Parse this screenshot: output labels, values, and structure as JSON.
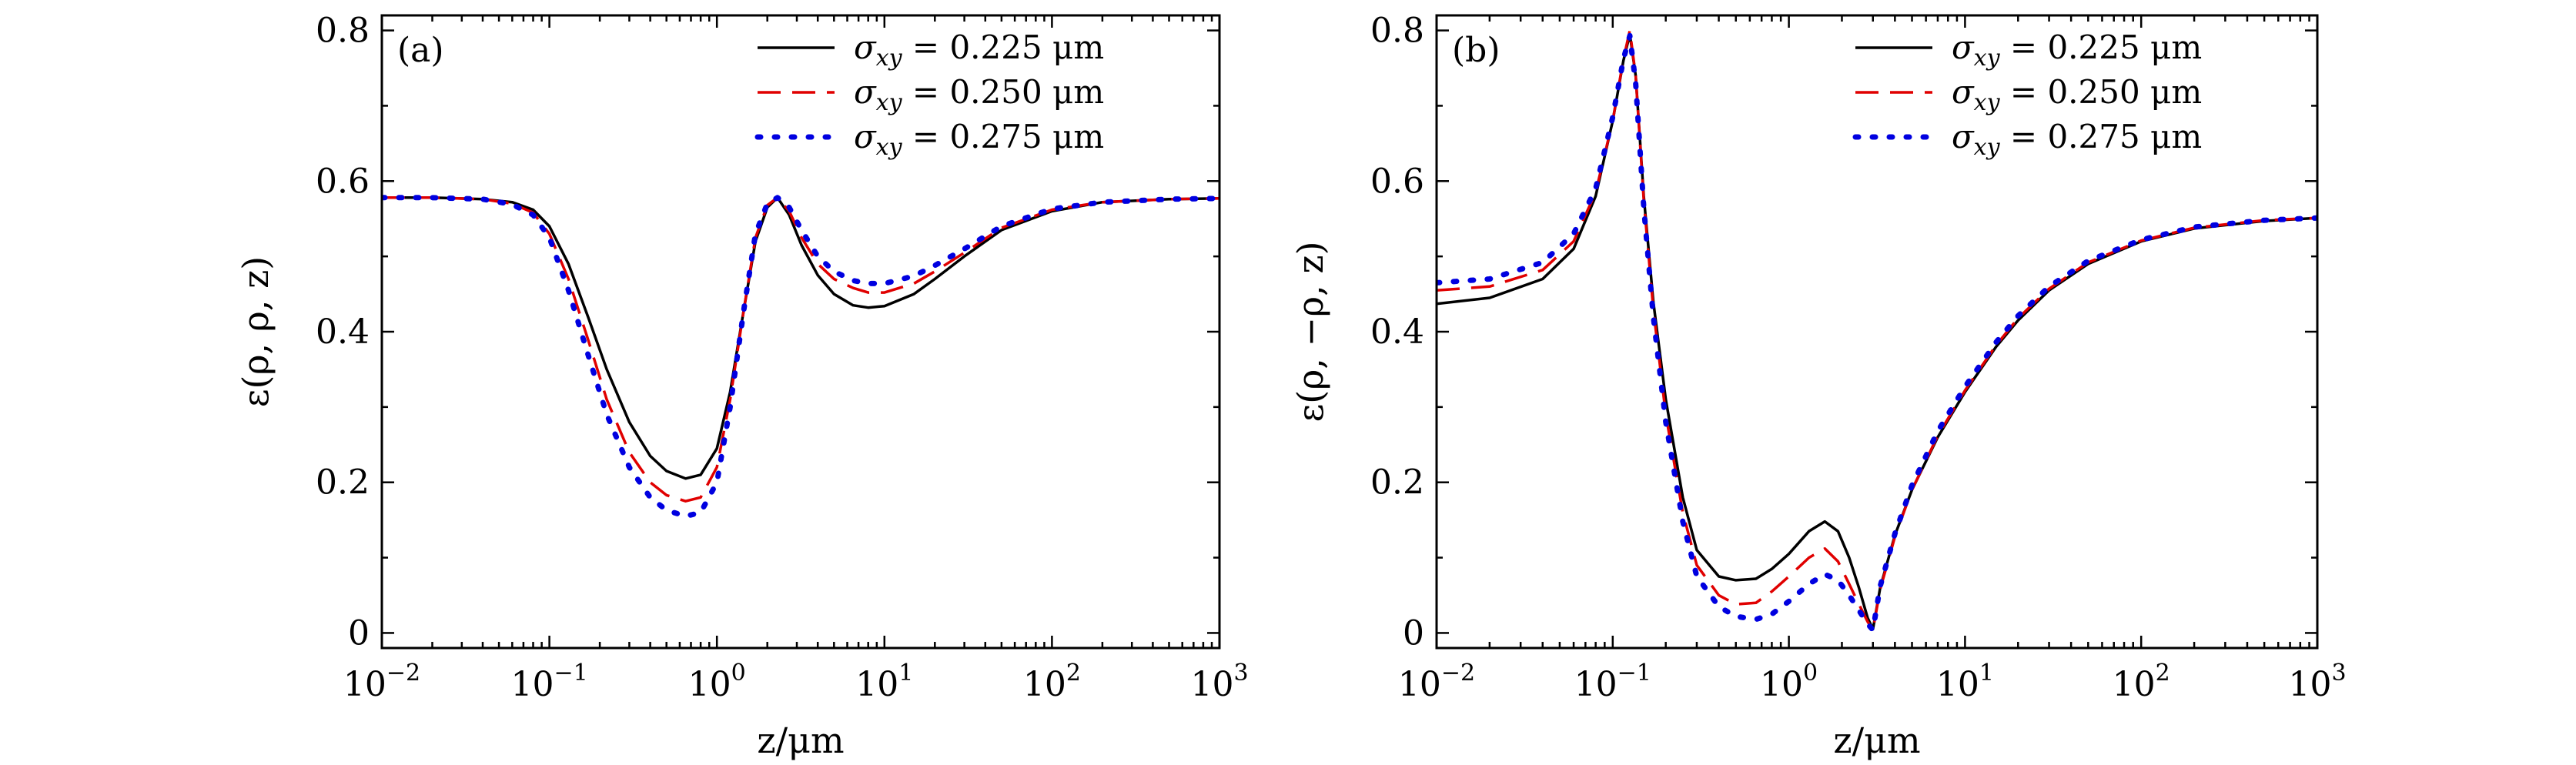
{
  "chart_data": [
    {
      "type": "line",
      "panel_label": "(a)",
      "xlabel": "z/μm",
      "ylabel": "ε(ρ, ρ, z)",
      "xscale": "log",
      "xlim": [
        0.01,
        1000
      ],
      "ylim": [
        -0.02,
        0.82
      ],
      "xticks": [
        {
          "value": 0.01,
          "base": "10",
          "exp": "−2"
        },
        {
          "value": 0.1,
          "base": "10",
          "exp": "−1"
        },
        {
          "value": 1,
          "base": "10",
          "exp": "0"
        },
        {
          "value": 10,
          "base": "10",
          "exp": "1"
        },
        {
          "value": 100,
          "base": "10",
          "exp": "2"
        },
        {
          "value": 1000,
          "base": "10",
          "exp": "3"
        }
      ],
      "yticks": [
        {
          "value": 0,
          "label": "0"
        },
        {
          "value": 0.2,
          "label": "0.2"
        },
        {
          "value": 0.4,
          "label": "0.4"
        },
        {
          "value": 0.6,
          "label": "0.6"
        },
        {
          "value": 0.8,
          "label": "0.8"
        }
      ],
      "legend_position": "top-right",
      "series": [
        {
          "name": "σxy = 0.225 μm",
          "legend": {
            "sym": "σ",
            "sub": "xy",
            "rest": " = 0.225 μm"
          },
          "color": "#000000",
          "style": "solid",
          "x": [
            0.01,
            0.02,
            0.04,
            0.06,
            0.08,
            0.1,
            0.13,
            0.17,
            0.22,
            0.3,
            0.4,
            0.5,
            0.65,
            0.8,
            1.0,
            1.2,
            1.45,
            1.7,
            2.0,
            2.3,
            2.7,
            3.2,
            4.0,
            5.0,
            6.5,
            8.0,
            10,
            15,
            20,
            30,
            50,
            100,
            200,
            500,
            1000
          ],
          "y": [
            0.578,
            0.578,
            0.576,
            0.572,
            0.562,
            0.54,
            0.49,
            0.42,
            0.35,
            0.28,
            0.235,
            0.215,
            0.205,
            0.21,
            0.245,
            0.32,
            0.43,
            0.52,
            0.565,
            0.578,
            0.555,
            0.515,
            0.475,
            0.45,
            0.435,
            0.432,
            0.434,
            0.45,
            0.47,
            0.5,
            0.535,
            0.56,
            0.572,
            0.576,
            0.577
          ]
        },
        {
          "name": "σxy = 0.250 μm",
          "legend": {
            "sym": "σ",
            "sub": "xy",
            "rest": " = 0.250 μm"
          },
          "color": "#e00000",
          "style": "dashed",
          "x": [
            0.01,
            0.02,
            0.04,
            0.06,
            0.08,
            0.1,
            0.13,
            0.17,
            0.22,
            0.3,
            0.4,
            0.5,
            0.65,
            0.8,
            1.0,
            1.2,
            1.45,
            1.7,
            2.0,
            2.3,
            2.7,
            3.2,
            4.0,
            5.0,
            6.5,
            8.0,
            10,
            15,
            20,
            30,
            50,
            100,
            200,
            500,
            1000
          ],
          "y": [
            0.578,
            0.578,
            0.576,
            0.57,
            0.558,
            0.53,
            0.47,
            0.39,
            0.31,
            0.24,
            0.2,
            0.183,
            0.175,
            0.18,
            0.22,
            0.31,
            0.43,
            0.525,
            0.568,
            0.578,
            0.56,
            0.525,
            0.49,
            0.47,
            0.458,
            0.452,
            0.452,
            0.464,
            0.48,
            0.505,
            0.538,
            0.562,
            0.572,
            0.576,
            0.577
          ]
        },
        {
          "name": "σxy = 0.275 μm",
          "legend": {
            "sym": "σ",
            "sub": "xy",
            "rest": " = 0.275 μm"
          },
          "color": "#0000e0",
          "style": "dotted",
          "x": [
            0.01,
            0.02,
            0.04,
            0.06,
            0.08,
            0.1,
            0.13,
            0.17,
            0.22,
            0.3,
            0.4,
            0.5,
            0.65,
            0.8,
            1.0,
            1.2,
            1.45,
            1.7,
            2.0,
            2.3,
            2.7,
            3.2,
            4.0,
            5.0,
            6.5,
            8.0,
            10,
            15,
            20,
            30,
            50,
            100,
            200,
            500,
            1000
          ],
          "y": [
            0.578,
            0.578,
            0.576,
            0.569,
            0.555,
            0.525,
            0.455,
            0.37,
            0.29,
            0.22,
            0.18,
            0.163,
            0.155,
            0.16,
            0.2,
            0.3,
            0.43,
            0.53,
            0.57,
            0.578,
            0.565,
            0.535,
            0.5,
            0.48,
            0.468,
            0.464,
            0.464,
            0.474,
            0.488,
            0.51,
            0.54,
            0.563,
            0.572,
            0.576,
            0.577
          ]
        }
      ]
    },
    {
      "type": "line",
      "panel_label": "(b)",
      "xlabel": "z/μm",
      "ylabel": "ε(ρ, −ρ, z)",
      "xscale": "log",
      "xlim": [
        0.01,
        1000
      ],
      "ylim": [
        -0.02,
        0.82
      ],
      "xticks": [
        {
          "value": 0.01,
          "base": "10",
          "exp": "−2"
        },
        {
          "value": 0.1,
          "base": "10",
          "exp": "−1"
        },
        {
          "value": 1,
          "base": "10",
          "exp": "0"
        },
        {
          "value": 10,
          "base": "10",
          "exp": "1"
        },
        {
          "value": 100,
          "base": "10",
          "exp": "2"
        },
        {
          "value": 1000,
          "base": "10",
          "exp": "3"
        }
      ],
      "yticks": [
        {
          "value": 0,
          "label": "0"
        },
        {
          "value": 0.2,
          "label": "0.2"
        },
        {
          "value": 0.4,
          "label": "0.4"
        },
        {
          "value": 0.6,
          "label": "0.6"
        },
        {
          "value": 0.8,
          "label": "0.8"
        }
      ],
      "legend_position": "top-right",
      "series": [
        {
          "name": "σxy = 0.225 μm",
          "legend": {
            "sym": "σ",
            "sub": "xy",
            "rest": " = 0.225 μm"
          },
          "color": "#000000",
          "style": "solid",
          "x": [
            0.01,
            0.02,
            0.04,
            0.06,
            0.08,
            0.1,
            0.115,
            0.125,
            0.135,
            0.15,
            0.17,
            0.2,
            0.25,
            0.3,
            0.4,
            0.5,
            0.65,
            0.8,
            1.0,
            1.3,
            1.6,
            1.9,
            2.2,
            2.5,
            2.8,
            3.0,
            3.3,
            4.0,
            5.0,
            7.0,
            10,
            15,
            20,
            30,
            50,
            100,
            200,
            500,
            1000
          ],
          "y": [
            0.437,
            0.445,
            0.47,
            0.51,
            0.58,
            0.68,
            0.76,
            0.795,
            0.74,
            0.58,
            0.44,
            0.31,
            0.18,
            0.11,
            0.075,
            0.07,
            0.072,
            0.085,
            0.105,
            0.135,
            0.148,
            0.135,
            0.1,
            0.06,
            0.02,
            0.005,
            0.06,
            0.13,
            0.19,
            0.26,
            0.32,
            0.38,
            0.415,
            0.455,
            0.49,
            0.52,
            0.537,
            0.547,
            0.551
          ]
        },
        {
          "name": "σxy = 0.250 μm",
          "legend": {
            "sym": "σ",
            "sub": "xy",
            "rest": " = 0.250 μm"
          },
          "color": "#e00000",
          "style": "dashed",
          "x": [
            0.01,
            0.02,
            0.04,
            0.06,
            0.08,
            0.1,
            0.115,
            0.125,
            0.135,
            0.15,
            0.17,
            0.2,
            0.25,
            0.3,
            0.4,
            0.5,
            0.65,
            0.8,
            1.0,
            1.3,
            1.6,
            1.9,
            2.2,
            2.5,
            2.8,
            3.0,
            3.3,
            4.0,
            5.0,
            7.0,
            10,
            15,
            20,
            30,
            50,
            100,
            200,
            500,
            1000
          ],
          "y": [
            0.455,
            0.46,
            0.482,
            0.52,
            0.585,
            0.68,
            0.762,
            0.8,
            0.74,
            0.575,
            0.43,
            0.29,
            0.16,
            0.09,
            0.05,
            0.038,
            0.04,
            0.055,
            0.075,
            0.1,
            0.112,
            0.095,
            0.065,
            0.038,
            0.015,
            0.004,
            0.058,
            0.128,
            0.19,
            0.262,
            0.322,
            0.382,
            0.418,
            0.457,
            0.492,
            0.521,
            0.538,
            0.548,
            0.551
          ]
        },
        {
          "name": "σxy = 0.275 μm",
          "legend": {
            "sym": "σ",
            "sub": "xy",
            "rest": " = 0.275 μm"
          },
          "color": "#0000e0",
          "style": "dotted",
          "x": [
            0.01,
            0.02,
            0.04,
            0.06,
            0.08,
            0.1,
            0.115,
            0.125,
            0.135,
            0.15,
            0.17,
            0.2,
            0.25,
            0.3,
            0.4,
            0.5,
            0.65,
            0.8,
            1.0,
            1.3,
            1.6,
            1.9,
            2.2,
            2.5,
            2.8,
            3.0,
            3.3,
            4.0,
            5.0,
            7.0,
            10,
            15,
            20,
            30,
            50,
            100,
            200,
            500,
            1000
          ],
          "y": [
            0.465,
            0.47,
            0.492,
            0.53,
            0.59,
            0.685,
            0.762,
            0.793,
            0.73,
            0.565,
            0.42,
            0.28,
            0.148,
            0.075,
            0.035,
            0.022,
            0.018,
            0.025,
            0.042,
            0.065,
            0.078,
            0.07,
            0.05,
            0.03,
            0.012,
            0.004,
            0.062,
            0.132,
            0.196,
            0.268,
            0.327,
            0.386,
            0.421,
            0.46,
            0.494,
            0.522,
            0.539,
            0.548,
            0.551
          ]
        }
      ]
    }
  ]
}
